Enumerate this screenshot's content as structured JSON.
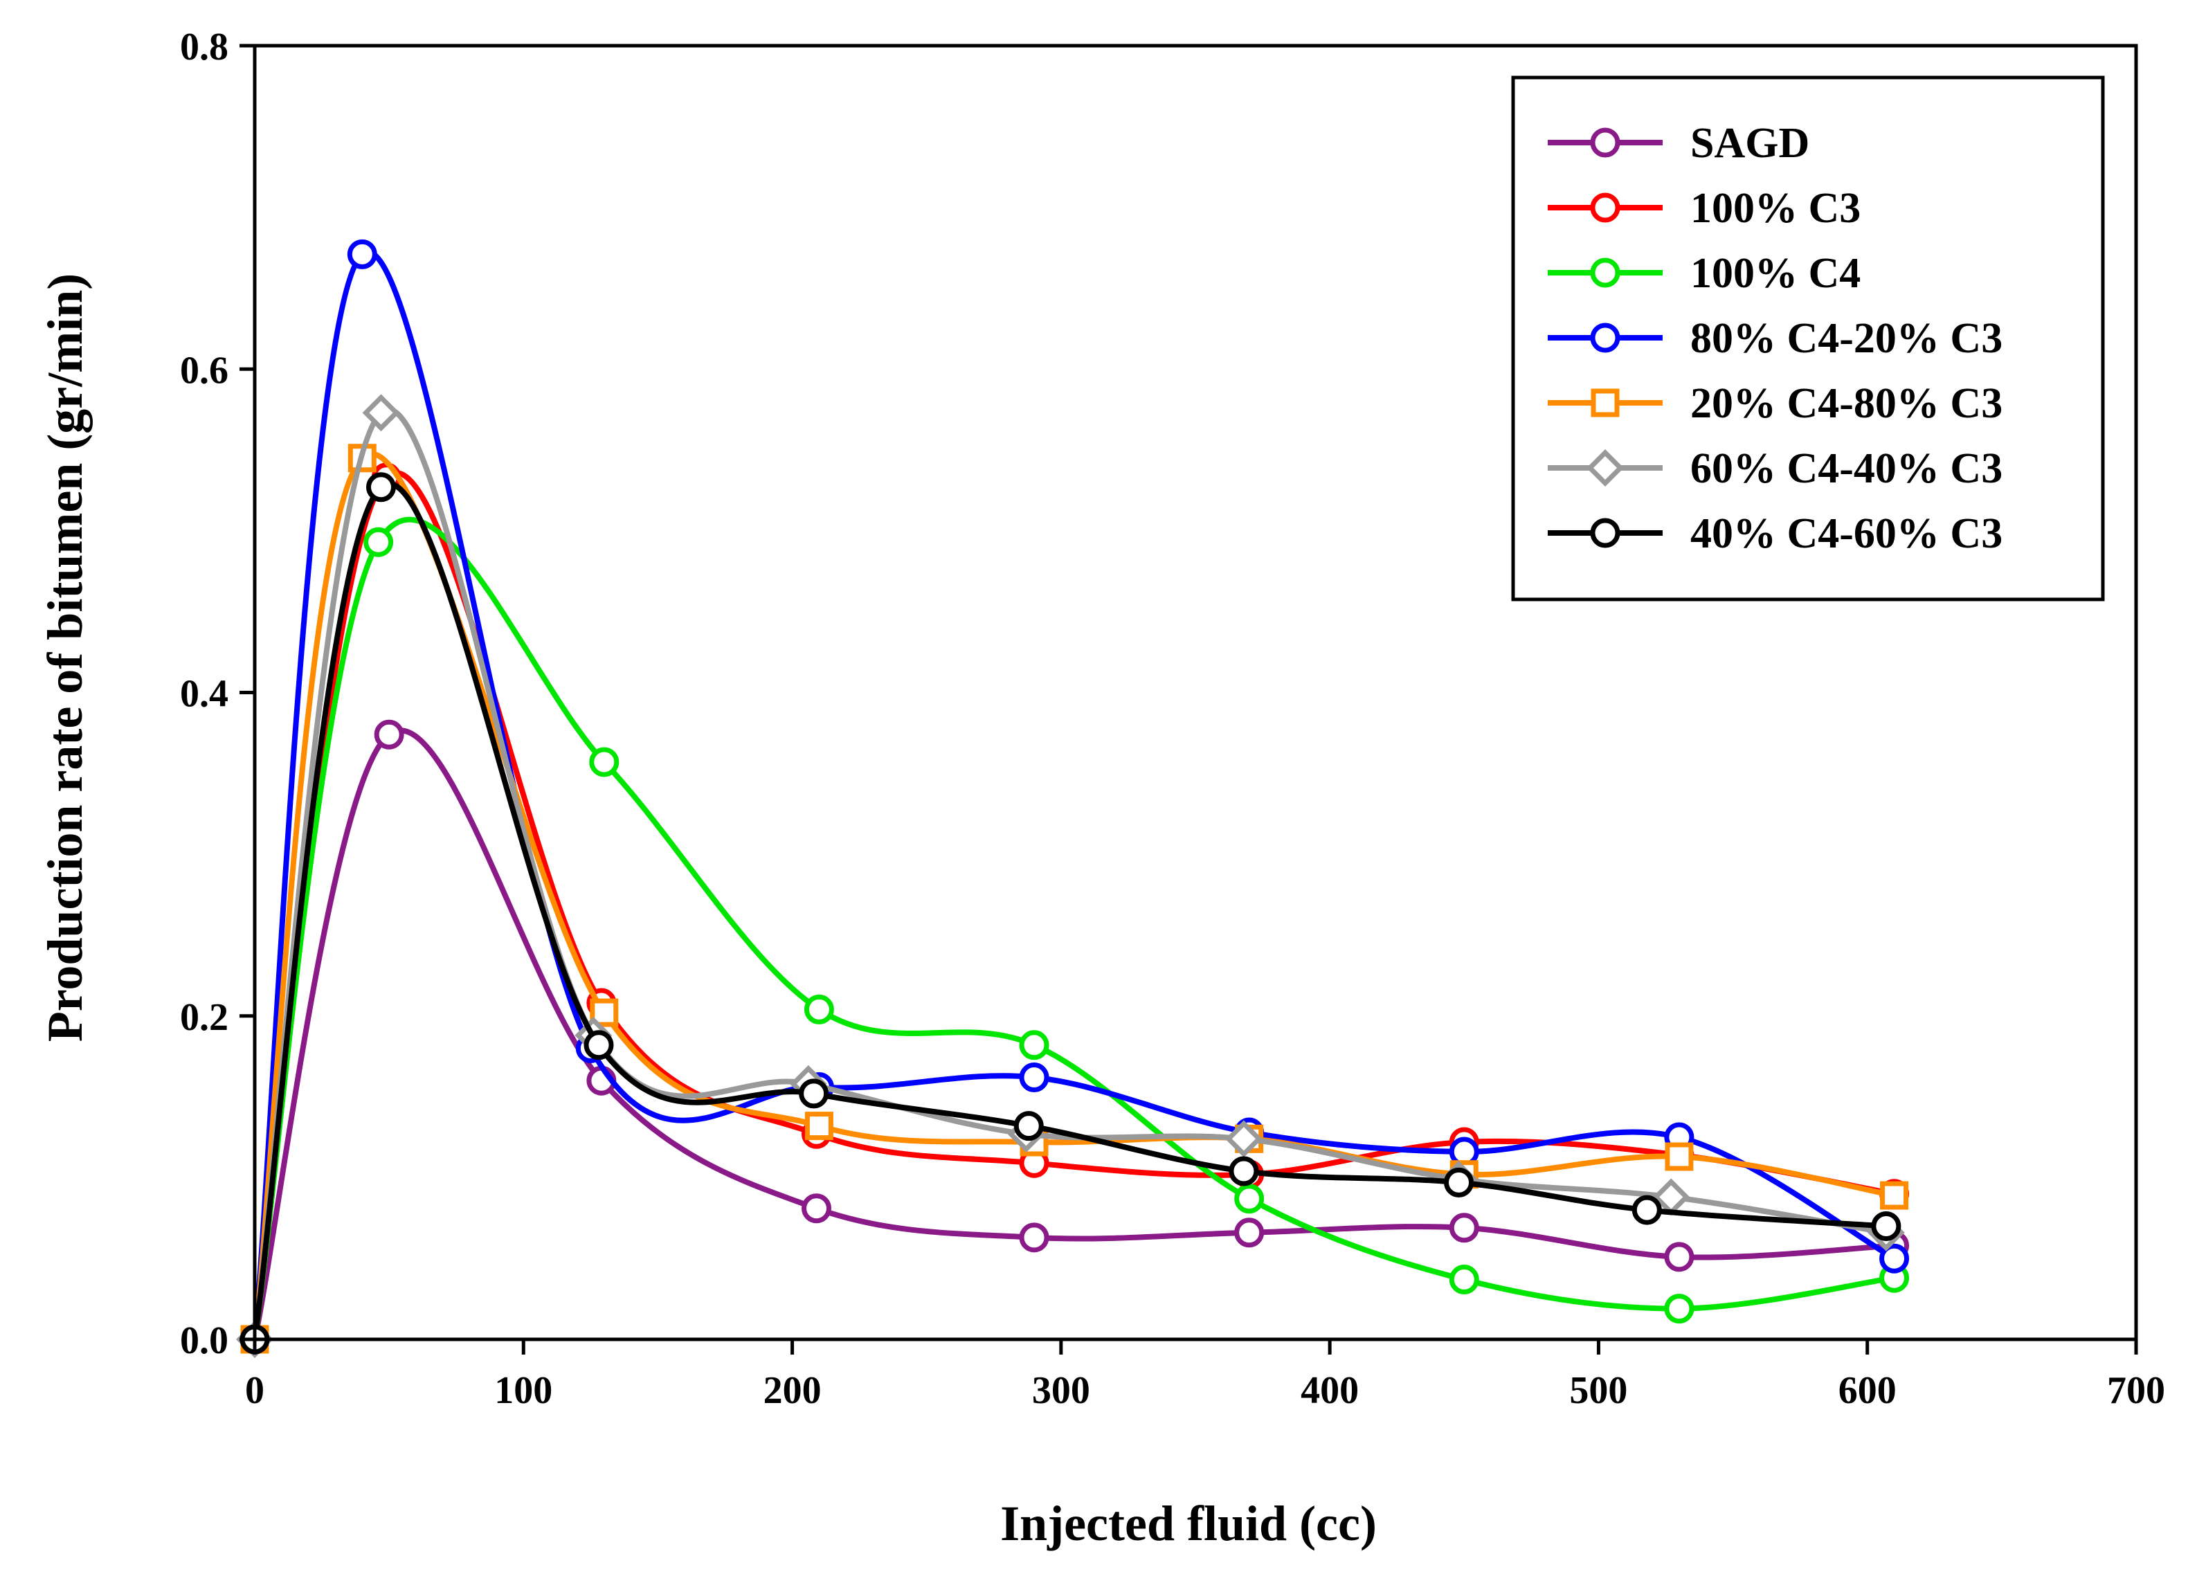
{
  "chart_data": {
    "type": "line",
    "title": "",
    "xlabel": "Injected fluid (cc)",
    "ylabel": "Production rate of bitumen (gr/min)",
    "xlim": [
      0,
      700
    ],
    "ylim": [
      0,
      0.8
    ],
    "xticks": [
      0,
      100,
      200,
      300,
      400,
      500,
      600,
      700
    ],
    "yticks": [
      0.0,
      0.2,
      0.4,
      0.6,
      0.8
    ],
    "xtick_labels": [
      "0",
      "100",
      "200",
      "300",
      "400",
      "500",
      "600",
      "700"
    ],
    "ytick_labels": [
      "0.0",
      "0.2",
      "0.4",
      "0.6",
      "0.8"
    ],
    "grid": false,
    "legend_position": "top-right",
    "series": [
      {
        "name": "SAGD",
        "color": "#8B1A89",
        "marker": "circle",
        "x": [
          0,
          50,
          129,
          209,
          290,
          370,
          450,
          530,
          610
        ],
        "y": [
          0.0,
          0.374,
          0.16,
          0.081,
          0.063,
          0.066,
          0.069,
          0.051,
          0.058
        ]
      },
      {
        "name": "100% C3",
        "color": "#FF0000",
        "marker": "circle",
        "x": [
          0,
          49,
          129,
          209,
          290,
          370,
          450,
          530,
          610
        ],
        "y": [
          0.0,
          0.533,
          0.208,
          0.127,
          0.109,
          0.102,
          0.122,
          0.114,
          0.09
        ]
      },
      {
        "name": "100% C4",
        "color": "#00E600",
        "marker": "circle",
        "x": [
          0,
          46,
          130,
          210,
          290,
          370,
          450,
          530,
          610
        ],
        "y": [
          0.0,
          0.493,
          0.357,
          0.204,
          0.182,
          0.087,
          0.037,
          0.019,
          0.038
        ]
      },
      {
        "name": "80% C4-20% C3",
        "color": "#0000FF",
        "marker": "circle",
        "x": [
          0,
          40,
          125,
          210,
          290,
          370,
          450,
          530,
          610
        ],
        "y": [
          0.0,
          0.671,
          0.18,
          0.156,
          0.162,
          0.128,
          0.116,
          0.125,
          0.05
        ]
      },
      {
        "name": "20% C4-80% C3",
        "color": "#FF8C00",
        "marker": "square",
        "x": [
          0,
          40,
          130,
          210,
          290,
          370,
          450,
          530,
          610
        ],
        "y": [
          0.0,
          0.545,
          0.202,
          0.132,
          0.122,
          0.124,
          0.102,
          0.113,
          0.089
        ]
      },
      {
        "name": "60% C4-40% C3",
        "color": "#999999",
        "marker": "diamond",
        "x": [
          0,
          47,
          126,
          206,
          287,
          368,
          448,
          527,
          607
        ],
        "y": [
          0.0,
          0.573,
          0.188,
          0.158,
          0.127,
          0.124,
          0.099,
          0.088,
          0.066
        ]
      },
      {
        "name": "40% C4-60% C3",
        "color": "#000000",
        "marker": "circle",
        "x": [
          0,
          47,
          128,
          208,
          288,
          368,
          448,
          518,
          607
        ],
        "y": [
          0.0,
          0.527,
          0.182,
          0.152,
          0.132,
          0.104,
          0.097,
          0.08,
          0.07
        ]
      }
    ]
  }
}
